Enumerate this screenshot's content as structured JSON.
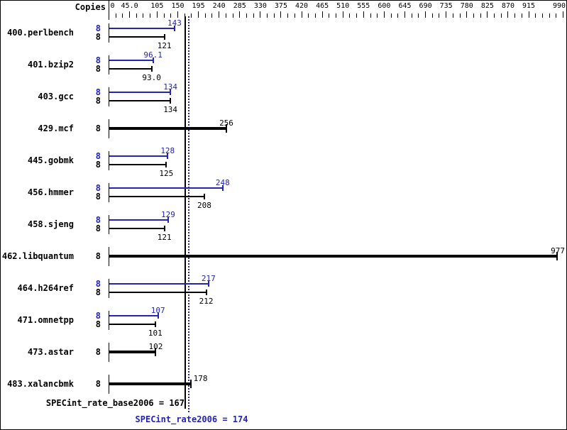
{
  "chart_data": {
    "type": "bar",
    "orientation": "horizontal",
    "copies_header": "Copies",
    "x_axis": {
      "tick_labels": [
        "0",
        "45.0",
        "105",
        "150",
        "195",
        "240",
        "285",
        "330",
        "375",
        "420",
        "465",
        "510",
        "555",
        "600",
        "645",
        "690",
        "735",
        "780",
        "825",
        "870",
        "915",
        "990"
      ],
      "tick_values": [
        0,
        45,
        105,
        150,
        195,
        240,
        285,
        330,
        375,
        420,
        465,
        510,
        555,
        600,
        645,
        690,
        735,
        780,
        825,
        870,
        915,
        990
      ],
      "minor_tick_step": 15,
      "min": 0,
      "max": 990
    },
    "categories": [
      "400.perlbench",
      "401.bzip2",
      "403.gcc",
      "429.mcf",
      "445.gobmk",
      "456.hmmer",
      "458.sjeng",
      "462.libquantum",
      "464.h264ref",
      "471.omnetpp",
      "473.astar",
      "483.xalancbmk"
    ],
    "benchmarks": [
      {
        "name": "400.perlbench",
        "copies": "8",
        "peak": 143,
        "base": 121,
        "peak_label": "143",
        "base_label": "121"
      },
      {
        "name": "401.bzip2",
        "copies": "8",
        "peak": 96.1,
        "base": 93.0,
        "peak_label": "96.1",
        "base_label": "93.0"
      },
      {
        "name": "403.gcc",
        "copies": "8",
        "peak": 134,
        "base": 134,
        "peak_label": "134",
        "base_label": "134"
      },
      {
        "name": "429.mcf",
        "copies": "8",
        "base": 256,
        "base_label": "256",
        "single": true
      },
      {
        "name": "445.gobmk",
        "copies": "8",
        "peak": 128,
        "base": 125,
        "peak_label": "128",
        "base_label": "125"
      },
      {
        "name": "456.hmmer",
        "copies": "8",
        "peak": 248,
        "base": 208,
        "peak_label": "248",
        "base_label": "208"
      },
      {
        "name": "458.sjeng",
        "copies": "8",
        "peak": 129,
        "base": 121,
        "peak_label": "129",
        "base_label": "121"
      },
      {
        "name": "462.libquantum",
        "copies": "8",
        "base": 977,
        "base_label": "977",
        "single": true
      },
      {
        "name": "464.h264ref",
        "copies": "8",
        "peak": 217,
        "base": 212,
        "peak_label": "217",
        "base_label": "212"
      },
      {
        "name": "471.omnetpp",
        "copies": "8",
        "peak": 107,
        "base": 101,
        "peak_label": "107",
        "base_label": "101"
      },
      {
        "name": "473.astar",
        "copies": "8",
        "base": 102,
        "base_label": "102",
        "single": true
      },
      {
        "name": "483.xalancbmk",
        "copies": "8",
        "base": 178,
        "base_label": "178",
        "single": true,
        "label_dx": 14
      }
    ],
    "series": [
      {
        "name": "peak",
        "color": "#2323b8",
        "values": [
          143,
          96.1,
          134,
          null,
          128,
          248,
          129,
          null,
          217,
          107,
          null,
          null
        ]
      },
      {
        "name": "base",
        "color": "#000000",
        "values": [
          121,
          93.0,
          134,
          256,
          125,
          208,
          121,
          977,
          212,
          101,
          102,
          178
        ]
      }
    ],
    "reference_lines": [
      {
        "name": "SPECint_rate_base2006",
        "value": 167,
        "style": "solid",
        "color": "#000000"
      },
      {
        "name": "SPECint_rate2006",
        "value": 174,
        "style": "dotted",
        "color": "#2323b8"
      }
    ],
    "annotations": {
      "base_text": "SPECint_rate_base2006 = 167",
      "peak_text": "SPECint_rate2006 = 174"
    },
    "colors": {
      "peak": "#2323b8",
      "base": "#000000"
    },
    "xlim": [
      0,
      1000
    ],
    "legend": "none",
    "grid": false
  }
}
